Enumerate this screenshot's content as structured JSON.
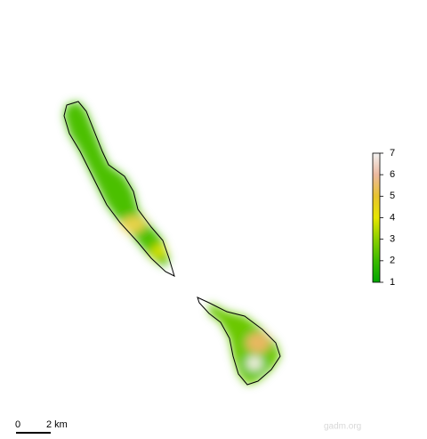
{
  "map": {
    "legend": {
      "lim": [
        1,
        7
      ],
      "ticks": [
        1,
        2,
        3,
        4,
        5,
        6,
        7
      ],
      "colors": [
        "#00a600",
        "#3cbb00",
        "#8bd000",
        "#e6e600",
        "#e8c32e",
        "#ecb9a0",
        "#f2f2f2"
      ]
    },
    "scale_bar": {
      "start": "0",
      "end": "2 km"
    },
    "credit": "gadm.org"
  }
}
